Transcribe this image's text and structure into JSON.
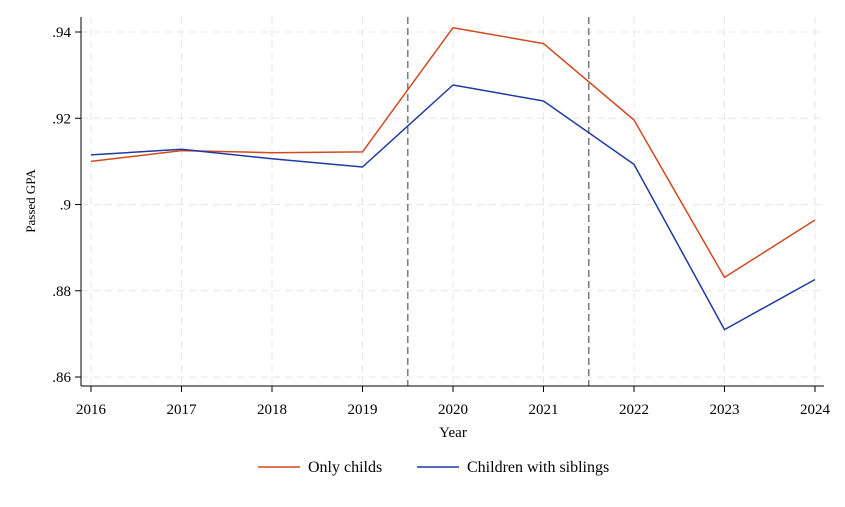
{
  "chart_data": {
    "type": "line",
    "title": "",
    "xlabel": "Year",
    "ylabel": "Passed GPA",
    "x": [
      2016,
      2017,
      2018,
      2019,
      2020,
      2021,
      2022,
      2023,
      2024
    ],
    "x_tick_labels": [
      "2016",
      "2017",
      "2018",
      "2019",
      "2020",
      "2021",
      "2022",
      "2023",
      "2024"
    ],
    "y_ticks": [
      0.86,
      0.88,
      0.9,
      0.92,
      0.94
    ],
    "y_tick_labels": [
      ".86",
      ".88",
      ".9",
      ".92",
      ".94"
    ],
    "xlim": [
      2016,
      2024
    ],
    "ylim": [
      0.857,
      0.943
    ],
    "grid": true,
    "vlines": [
      2019.5,
      2021.5
    ],
    "legend_position": "bottom",
    "series": [
      {
        "name": "Only childs",
        "color": "#d2491d",
        "values": [
          0.91,
          0.9125,
          0.912,
          0.9122,
          0.941,
          0.9373,
          0.9196,
          0.8831,
          0.8964
        ]
      },
      {
        "name": "Children with siblings",
        "color": "#1f3aa0",
        "values": [
          0.9115,
          0.9128,
          0.9106,
          0.9087,
          0.9277,
          0.924,
          0.9093,
          0.871,
          0.8826
        ]
      }
    ]
  }
}
